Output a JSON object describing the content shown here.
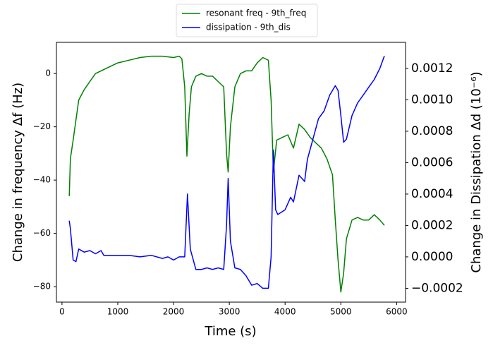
{
  "chart_data": {
    "type": "line",
    "x_label": "Time (s)",
    "y_label": "Change in frequency Δf (Hz)",
    "y2_label": "Change in Dissipation Δd (10⁻⁶)",
    "xlim": [
      -100,
      6160
    ],
    "xticks": [
      0,
      1000,
      2000,
      3000,
      4000,
      5000,
      6000
    ],
    "ylim": [
      -85.8,
      11.7
    ],
    "yticks": [
      {
        "value": -80,
        "label": "−80"
      },
      {
        "value": -60,
        "label": "−60"
      },
      {
        "value": -40,
        "label": "−40"
      },
      {
        "value": -20,
        "label": "−20"
      },
      0
    ],
    "y2lim": [
      -0.000288,
      0.001366
    ],
    "y2ticks": [
      {
        "value": -0.0002,
        "label": "−0.0002"
      },
      {
        "value": 0,
        "label": "0.0000"
      },
      {
        "value": 0.0002,
        "label": "0.0002"
      },
      {
        "value": 0.0004,
        "label": "0.0004"
      },
      {
        "value": 0.0006,
        "label": "0.0006"
      },
      {
        "value": 0.0008,
        "label": "0.0008"
      },
      {
        "value": 0.001,
        "label": "0.0010"
      },
      {
        "value": 0.0012,
        "label": "0.0012"
      }
    ],
    "legend": "upper center",
    "series": [
      {
        "name": "resonant freq - 9th_freq",
        "color": "#008000",
        "axis": "y",
        "x": [
          130,
          150,
          200,
          300,
          400,
          500,
          600,
          700,
          800,
          1000,
          1200,
          1400,
          1600,
          1800,
          2000,
          2100,
          2150,
          2200,
          2240,
          2280,
          2320,
          2400,
          2500,
          2600,
          2700,
          2800,
          2900,
          2950,
          2980,
          3020,
          3100,
          3200,
          3300,
          3400,
          3500,
          3600,
          3700,
          3750,
          3790,
          3850,
          3950,
          4050,
          4150,
          4250,
          4350,
          4450,
          4550,
          4650,
          4750,
          4850,
          4900,
          4950,
          5000,
          5050,
          5100,
          5200,
          5300,
          5400,
          5500,
          5600,
          5700,
          5780
        ],
        "values": [
          -46,
          -32,
          -25,
          -10,
          -6,
          -3,
          0,
          1,
          2,
          4,
          5,
          6,
          6.5,
          6.5,
          6,
          6.5,
          5.5,
          -5,
          -31,
          -15,
          -5,
          -1,
          0,
          -1,
          -1,
          -3,
          -5,
          -30,
          -37,
          -20,
          -5,
          0,
          1,
          1,
          4,
          6,
          5,
          -10,
          -37,
          -25,
          -24,
          -23,
          -28,
          -19,
          -21,
          -24,
          -26,
          -28,
          -32,
          -38,
          -55,
          -70,
          -82,
          -75,
          -62,
          -55,
          -54,
          -55,
          -55,
          -53,
          -55,
          -57
        ]
      },
      {
        "name": "dissipation - 9th_dis",
        "color": "#0000ff",
        "axis": "y2",
        "x": [
          130,
          150,
          200,
          250,
          300,
          400,
          500,
          600,
          700,
          750,
          900,
          1000,
          1200,
          1400,
          1600,
          1800,
          1900,
          2000,
          2100,
          2200,
          2250,
          2300,
          2400,
          2500,
          2600,
          2700,
          2800,
          2900,
          2950,
          2980,
          3020,
          3100,
          3200,
          3300,
          3400,
          3500,
          3600,
          3700,
          3750,
          3790,
          3830,
          3870,
          4000,
          4100,
          4150,
          4250,
          4350,
          4400,
          4500,
          4600,
          4700,
          4800,
          4900,
          4950,
          5000,
          5050,
          5100,
          5200,
          5300,
          5400,
          5500,
          5600,
          5700,
          5780
        ],
        "values": [
          0.00023,
          0.00018,
          -2e-05,
          -3e-05,
          5e-05,
          3e-05,
          4e-05,
          2e-05,
          4e-05,
          1e-05,
          1e-05,
          1e-05,
          1e-05,
          0,
          1e-05,
          -1e-05,
          0,
          -2e-05,
          0,
          0,
          0.0004,
          5e-05,
          -8e-05,
          -8e-05,
          -7e-05,
          -8e-05,
          -7e-05,
          -8e-05,
          0.0002,
          0.0005,
          0.0001,
          -7e-05,
          -8e-05,
          -0.00012,
          -0.00018,
          -0.00017,
          -0.0002,
          -0.0002,
          0,
          0.00068,
          0.0003,
          0.00027,
          0.0003,
          0.00038,
          0.00035,
          0.00052,
          0.00048,
          0.00062,
          0.00075,
          0.00088,
          0.00093,
          0.00103,
          0.00109,
          0.00106,
          0.0009,
          0.00073,
          0.00075,
          0.0009,
          0.00098,
          0.00103,
          0.00108,
          0.00113,
          0.0012,
          0.00128
        ]
      }
    ]
  }
}
